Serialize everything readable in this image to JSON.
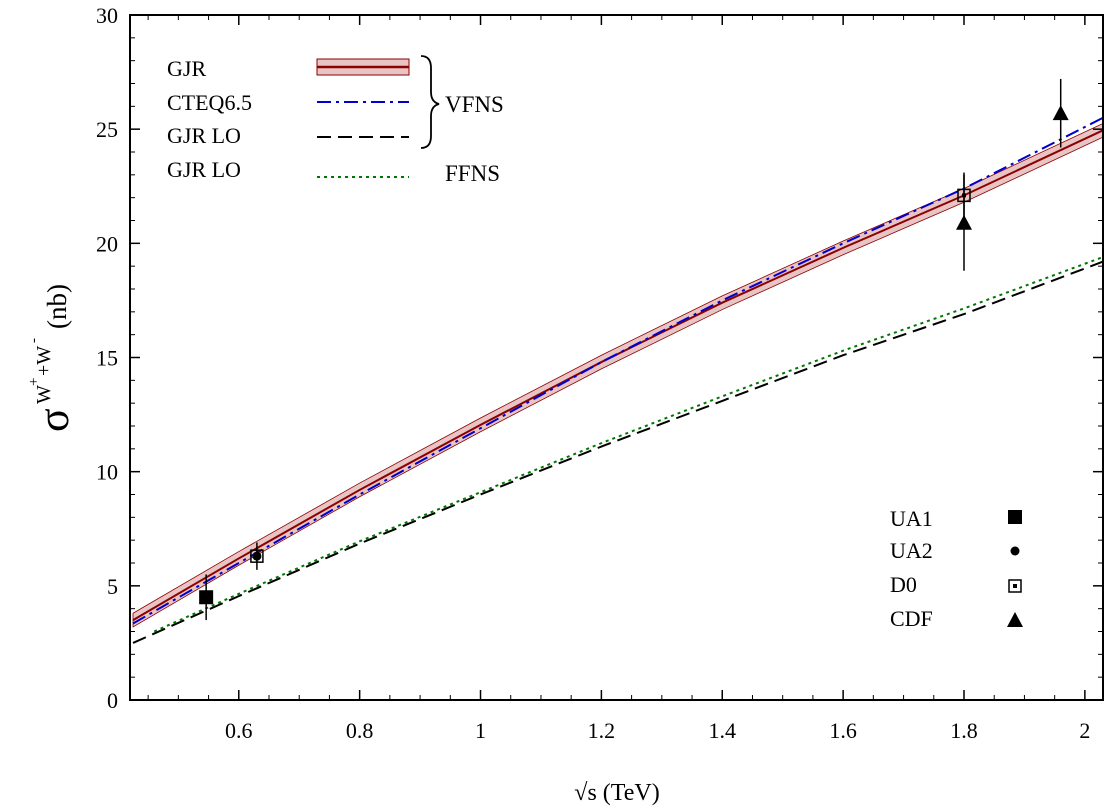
{
  "chart_data": {
    "type": "line",
    "xlabel": "√s (TeV)",
    "ylabel": {
      "symbol": "σ",
      "superscript": [
        "W",
        "+",
        "+W",
        "-"
      ],
      "unit": "(nb)"
    },
    "xlim": [
      0.42,
      2.03
    ],
    "ylim": [
      0,
      30
    ],
    "x_ticks": [
      "0.6",
      "0.8",
      "1",
      "1.2",
      "1.4",
      "1.6",
      "1.8",
      "2"
    ],
    "x_tick_values": [
      0.6,
      0.8,
      1.0,
      1.2,
      1.4,
      1.6,
      1.8,
      2.0
    ],
    "y_ticks": [
      "0",
      "5",
      "10",
      "15",
      "20",
      "25",
      "30"
    ],
    "y_tick_values": [
      0,
      5,
      10,
      15,
      20,
      25,
      30
    ],
    "grid": false,
    "legend_position": "top-left",
    "series": [
      {
        "name": "GJR",
        "style": "solid band",
        "color": "#8b0000",
        "band_color": "#e8c4c4",
        "group": "VFNS",
        "x": [
          0.425,
          0.6,
          0.8,
          1.0,
          1.2,
          1.4,
          1.6,
          1.8,
          2.03
        ],
        "y": [
          3.5,
          6.2,
          9.2,
          12.05,
          14.8,
          17.4,
          19.8,
          22.1,
          24.95
        ],
        "band_halfwidth": 0.3
      },
      {
        "name": "CTEQ6.5",
        "style": "dash-dot",
        "color": "#0000cc",
        "group": "VFNS",
        "x": [
          0.425,
          0.6,
          0.8,
          1.0,
          1.2,
          1.4,
          1.6,
          1.8,
          2.03
        ],
        "y": [
          3.35,
          6.0,
          9.0,
          11.9,
          14.8,
          17.5,
          20.0,
          22.4,
          25.5
        ]
      },
      {
        "name": "GJR LO",
        "style": "dashed",
        "color": "#000000",
        "group": "VFNS",
        "x": [
          0.425,
          0.6,
          0.8,
          1.0,
          1.2,
          1.4,
          1.6,
          1.8,
          2.03
        ],
        "y": [
          2.5,
          4.55,
          6.85,
          9.0,
          11.1,
          13.1,
          15.1,
          16.9,
          19.2
        ]
      },
      {
        "name": "GJR LO",
        "style": "dotted",
        "color": "#007700",
        "group": "FFNS",
        "x": [
          0.46,
          0.6,
          0.8,
          1.0,
          1.2,
          1.4,
          1.6,
          1.8,
          2.03
        ],
        "y": [
          3.0,
          4.65,
          6.95,
          9.1,
          11.25,
          13.3,
          15.3,
          17.15,
          19.4
        ]
      }
    ],
    "groups": [
      {
        "label": "VFNS"
      },
      {
        "label": "FFNS"
      }
    ],
    "data_points": [
      {
        "name": "UA1",
        "marker": "filled-square",
        "points": [
          {
            "x": 0.546,
            "y": 4.5,
            "err": 1.0
          }
        ]
      },
      {
        "name": "UA2",
        "marker": "filled-circle",
        "points": [
          {
            "x": 0.63,
            "y": 6.3,
            "err": 0.6
          }
        ]
      },
      {
        "name": "D0",
        "marker": "open-square-dot",
        "points": [
          {
            "x": 0.63,
            "y": 6.3,
            "err": 0.3
          },
          {
            "x": 1.8,
            "y": 22.1,
            "err": 1.0
          }
        ]
      },
      {
        "name": "CDF",
        "marker": "filled-triangle",
        "points": [
          {
            "x": 1.8,
            "y": 20.9,
            "err": 2.1
          },
          {
            "x": 1.96,
            "y": 25.7,
            "err": 1.5
          }
        ]
      }
    ]
  }
}
